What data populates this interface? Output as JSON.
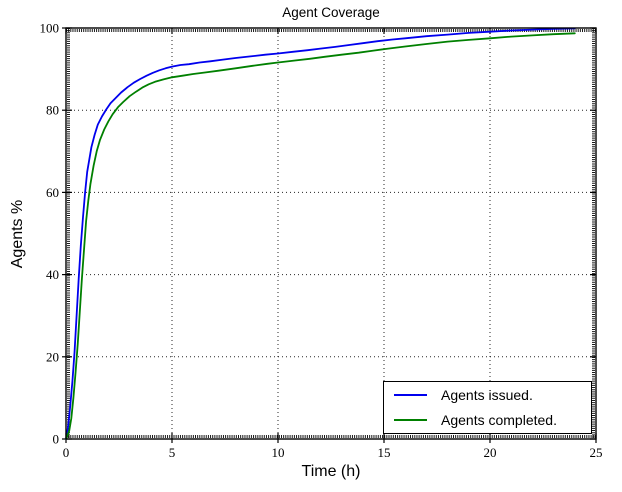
{
  "chart_data": {
    "type": "line",
    "title": "Agent Coverage",
    "xlabel": "Time (h)",
    "ylabel": "Agents %",
    "xlim": [
      0,
      25
    ],
    "ylim": [
      0,
      100
    ],
    "xticks": [
      0,
      5,
      10,
      15,
      20,
      25
    ],
    "yticks": [
      0,
      20,
      40,
      60,
      80,
      100
    ],
    "grid": {
      "visible": true,
      "style": "dotted",
      "color": "#000000"
    },
    "legend": {
      "position": "lower right",
      "border_color": "#000000"
    },
    "series": [
      {
        "name": "Agents issued.",
        "color": "#0000ee",
        "x": [
          0,
          0.1,
          0.2,
          0.3,
          0.4,
          0.5,
          0.6,
          0.7,
          0.8,
          0.9,
          1,
          1.1,
          1.2,
          1.35,
          1.5,
          1.7,
          1.9,
          2.1,
          2.35,
          2.6,
          2.9,
          3.2,
          3.5,
          3.8,
          4.1,
          4.4,
          4.7,
          5,
          5.4,
          5.8,
          6.3,
          6.8,
          7.4,
          8,
          8.7,
          9.4,
          10,
          10.7,
          11.4,
          12,
          12.7,
          13.4,
          14,
          14.7,
          15.4,
          16,
          17,
          18,
          19,
          20,
          21,
          22,
          23,
          24
        ],
        "y": [
          0,
          3,
          8,
          14,
          21,
          30,
          39,
          47,
          54,
          60,
          65,
          68,
          71,
          74,
          76.5,
          78.5,
          80.2,
          81.7,
          83,
          84.3,
          85.6,
          86.7,
          87.6,
          88.4,
          89.1,
          89.7,
          90.2,
          90.6,
          91,
          91.2,
          91.6,
          91.9,
          92.3,
          92.7,
          93.1,
          93.5,
          93.8,
          94.2,
          94.6,
          95,
          95.4,
          95.9,
          96.3,
          96.8,
          97.2,
          97.5,
          98,
          98.4,
          98.8,
          99.1,
          99.4,
          99.6,
          99.8,
          99.9
        ]
      },
      {
        "name": "Agents completed.",
        "color": "#008000",
        "x": [
          0,
          0.15,
          0.25,
          0.35,
          0.45,
          0.55,
          0.65,
          0.75,
          0.85,
          0.95,
          1.05,
          1.15,
          1.3,
          1.45,
          1.6,
          1.8,
          2,
          2.2,
          2.45,
          2.7,
          3,
          3.3,
          3.6,
          3.9,
          4.2,
          4.6,
          5,
          5.5,
          6,
          6.6,
          7.2,
          8,
          8.8,
          9.5,
          10,
          10.8,
          11.5,
          12.2,
          13,
          13.8,
          14.5,
          15.2,
          16,
          17,
          18,
          19,
          20,
          21,
          22,
          23,
          24
        ],
        "y": [
          0,
          2,
          5,
          10,
          16,
          23,
          31,
          39,
          46,
          53,
          58,
          62,
          66.5,
          70,
          72.7,
          75.3,
          77.3,
          79,
          80.7,
          82,
          83.4,
          84.5,
          85.5,
          86.3,
          86.9,
          87.5,
          88,
          88.4,
          88.8,
          89.2,
          89.6,
          90.2,
          90.8,
          91.3,
          91.6,
          92.1,
          92.5,
          93,
          93.5,
          94,
          94.5,
          95,
          95.5,
          96.1,
          96.7,
          97.1,
          97.5,
          97.9,
          98.2,
          98.5,
          98.7
        ]
      }
    ]
  }
}
